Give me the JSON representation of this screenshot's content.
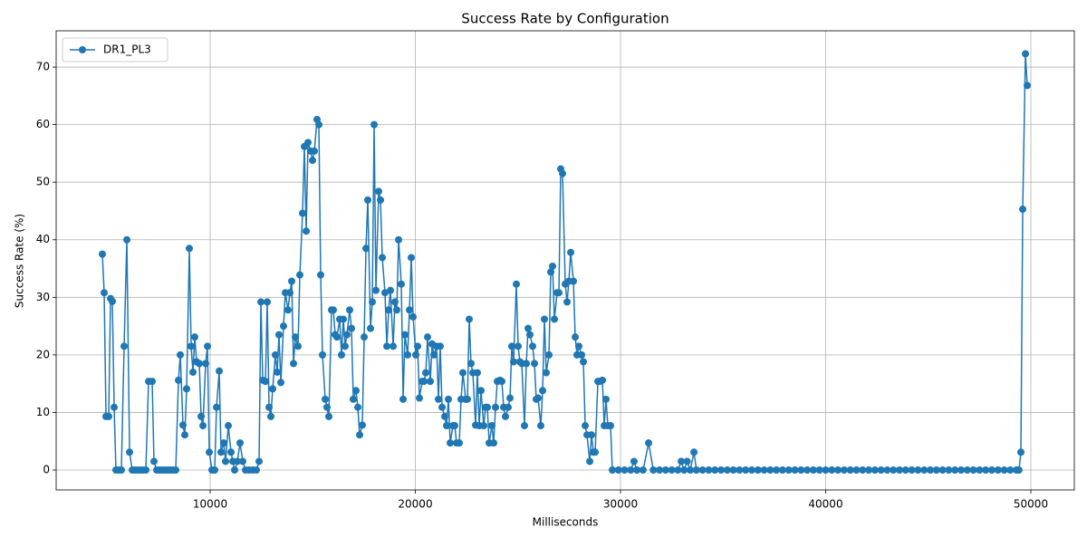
{
  "chart_data": {
    "type": "line",
    "title": "Success Rate by Configuration",
    "x_label": "Milliseconds",
    "y_label": "Success Rate (%)",
    "x": [
      4746,
      4834,
      4923,
      5055,
      5144,
      5232,
      5320,
      5408,
      5541,
      5673,
      5806,
      5938,
      6071,
      6203,
      6336,
      6468,
      6600,
      6733,
      6865,
      6998,
      7174,
      7262,
      7395,
      7527,
      7660,
      7792,
      7925,
      8057,
      8190,
      8322,
      8455,
      8543,
      8675,
      8763,
      8852,
      8985,
      9073,
      9161,
      9250,
      9338,
      9470,
      9559,
      9647,
      9779,
      9868,
      9956,
      10088,
      10221,
      10309,
      10442,
      10530,
      10662,
      10751,
      10883,
      11016,
      11104,
      11192,
      11325,
      11457,
      11589,
      11722,
      11898,
      12075,
      12252,
      12384,
      12473,
      12561,
      12694,
      12782,
      12870,
      12958,
      13046,
      13179,
      13267,
      13355,
      13444,
      13576,
      13664,
      13797,
      13885,
      13974,
      14062,
      14150,
      14283,
      14371,
      14503,
      14592,
      14680,
      14768,
      14901,
      14989,
      15077,
      15210,
      15298,
      15386,
      15475,
      15607,
      15695,
      15784,
      15916,
      16004,
      16093,
      16181,
      16313,
      16402,
      16490,
      16578,
      16667,
      16799,
      16888,
      16976,
      17108,
      17197,
      17285,
      17417,
      17506,
      17594,
      17682,
      17815,
      17903,
      17992,
      18080,
      18212,
      18301,
      18389,
      18521,
      18610,
      18698,
      18786,
      18919,
      19007,
      19095,
      19184,
      19316,
      19405,
      19493,
      19625,
      19714,
      19802,
      19890,
      20023,
      20111,
      20199,
      20331,
      20420,
      20508,
      20596,
      20729,
      20817,
      20905,
      21038,
      21126,
      21214,
      21303,
      21435,
      21523,
      21612,
      21700,
      21832,
      21921,
      22009,
      22142,
      22230,
      22318,
      22451,
      22539,
      22627,
      22715,
      22804,
      22936,
      23024,
      23113,
      23201,
      23333,
      23422,
      23510,
      23598,
      23731,
      23819,
      23907,
      23996,
      24128,
      24216,
      24305,
      24393,
      24525,
      24614,
      24702,
      24790,
      24923,
      25011,
      25099,
      25188,
      25320,
      25409,
      25497,
      25585,
      25718,
      25806,
      25894,
      25983,
      26115,
      26204,
      26292,
      26380,
      26513,
      26601,
      26689,
      26778,
      26910,
      26998,
      27087,
      27175,
      27307,
      27396,
      27484,
      27572,
      27705,
      27793,
      27881,
      27970,
      28102,
      28191,
      28279,
      28367,
      28500,
      28588,
      28676,
      28765,
      28897,
      28985,
      29118,
      29206,
      29294,
      29383,
      29515,
      29603,
      29900,
      30200,
      30500,
      30660,
      30800,
      31100,
      31370,
      31600,
      31900,
      32200,
      32500,
      32800,
      32960,
      33100,
      33250,
      33400,
      33580,
      33700,
      34000,
      34300,
      34600,
      34900,
      35200,
      35500,
      35800,
      36100,
      36400,
      36700,
      37000,
      37300,
      37600,
      37900,
      38200,
      38500,
      38800,
      39100,
      39400,
      39700,
      40000,
      40300,
      40600,
      40900,
      41200,
      41500,
      41800,
      42100,
      42400,
      42700,
      43000,
      43300,
      43600,
      43900,
      44200,
      44500,
      44800,
      45100,
      45400,
      45700,
      46000,
      46300,
      46600,
      46900,
      47200,
      47500,
      47800,
      48100,
      48400,
      48700,
      49000,
      49300,
      49420,
      49515,
      49604,
      49736,
      49824
    ],
    "series": [
      {
        "name": "DR1_PL3",
        "color": "#1f77b4",
        "values": [
          37.5,
          30.8,
          9.3,
          9.3,
          29.8,
          29.3,
          10.9,
          0,
          0,
          0,
          21.5,
          40,
          3.1,
          0,
          0,
          0,
          0,
          0,
          0,
          15.4,
          15.4,
          1.5,
          0,
          0,
          0,
          0,
          0,
          0,
          0,
          0,
          15.6,
          20,
          7.8,
          6.1,
          14.1,
          38.5,
          21.5,
          17,
          23.1,
          18.8,
          18.5,
          9.3,
          7.7,
          18.5,
          21.5,
          3.1,
          0,
          0,
          10.9,
          17.2,
          3.1,
          4.7,
          1.5,
          7.7,
          3.1,
          1.5,
          0,
          1.5,
          4.7,
          1.5,
          0,
          0,
          0,
          0,
          1.5,
          29.2,
          15.6,
          15.4,
          29.2,
          10.9,
          9.3,
          14.1,
          20,
          17,
          23.5,
          15.2,
          25,
          30.8,
          27.8,
          30.8,
          32.8,
          18.5,
          23.1,
          21.5,
          33.9,
          44.6,
          56.2,
          41.5,
          56.9,
          55.4,
          53.8,
          55.4,
          60.9,
          60,
          33.9,
          20,
          12.3,
          10.9,
          9.3,
          27.8,
          27.8,
          23.5,
          23.1,
          26.2,
          20,
          26.2,
          21.5,
          23.5,
          27.8,
          24.6,
          12.3,
          13.8,
          10.9,
          6.1,
          7.8,
          23.1,
          38.5,
          46.9,
          24.6,
          29.2,
          60,
          31.2,
          48.4,
          46.9,
          36.9,
          30.8,
          21.5,
          27.8,
          31.2,
          21.5,
          29.2,
          27.8,
          40,
          32.3,
          12.3,
          23.5,
          20,
          27.8,
          36.9,
          26.6,
          20,
          21.5,
          12.5,
          15.4,
          15.4,
          16.9,
          23.1,
          15.4,
          21.9,
          20,
          21.5,
          12.3,
          21.5,
          10.9,
          9.3,
          7.7,
          12.3,
          4.7,
          7.7,
          7.7,
          4.7,
          4.7,
          12.3,
          16.9,
          12.3,
          12.3,
          26.2,
          18.5,
          16.9,
          7.8,
          16.9,
          7.7,
          13.8,
          7.7,
          10.9,
          10.9,
          4.7,
          7.7,
          4.7,
          10.9,
          15.4,
          15.6,
          15.4,
          10.9,
          9.3,
          10.9,
          12.5,
          21.5,
          18.8,
          32.3,
          21.5,
          18.8,
          18.5,
          7.7,
          18.5,
          24.6,
          23.5,
          21.5,
          18.5,
          12.3,
          12.5,
          7.7,
          13.8,
          26.2,
          16.9,
          20,
          34.4,
          35.4,
          26.2,
          30.8,
          30.8,
          52.3,
          51.5,
          32.3,
          29.2,
          32.8,
          37.8,
          32.8,
          23.1,
          20,
          21.5,
          20,
          18.8,
          7.7,
          6.1,
          1.5,
          6.1,
          3.1,
          3.1,
          15.4,
          15.4,
          15.6,
          7.7,
          12.3,
          7.7,
          7.7,
          0,
          0,
          0,
          0,
          1.5,
          0,
          0,
          4.7,
          0,
          0,
          0,
          0,
          0,
          1.5,
          0,
          1.5,
          0,
          3.1,
          0,
          0,
          0,
          0,
          0,
          0,
          0,
          0,
          0,
          0,
          0,
          0,
          0,
          0,
          0,
          0,
          0,
          0,
          0,
          0,
          0,
          0,
          0,
          0,
          0,
          0,
          0,
          0,
          0,
          0,
          0,
          0,
          0,
          0,
          0,
          0,
          0,
          0,
          0,
          0,
          0,
          0,
          0,
          0,
          0,
          0,
          0,
          0,
          0,
          0,
          0,
          0,
          0,
          0,
          3.1,
          45.3,
          72.3,
          66.8
        ]
      }
    ],
    "xlim": [
      2494,
      52119
    ],
    "ylim": [
      -3.46,
      76.3
    ],
    "xticks": [
      10000,
      20000,
      30000,
      40000,
      50000
    ],
    "yticks": [
      0,
      10,
      20,
      30,
      40,
      50,
      60,
      70
    ],
    "grid": true,
    "legend": "upper-left"
  }
}
